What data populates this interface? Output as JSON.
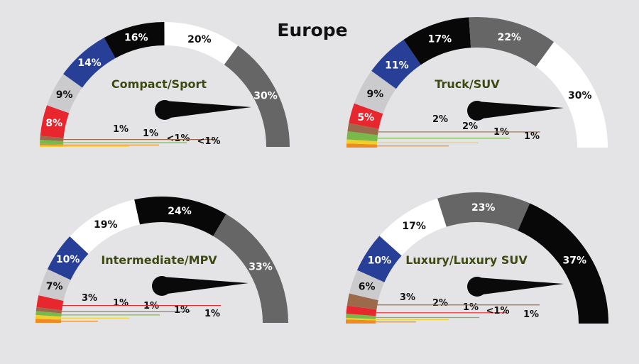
{
  "title": "Europe",
  "colors": {
    "red": "#e8262d",
    "light_gray": "#cbcbcd",
    "blue": "#283f98",
    "black": "#080808",
    "white": "#ffffff",
    "dark_gray": "#666667",
    "brown": "#9c6a4a",
    "green": "#79b94a",
    "yellow": "#f1cf2b",
    "orange": "#f08a22",
    "label_green": "#3c4a12",
    "background": "#e4e4e6"
  },
  "chart_data": [
    {
      "type": "gauge",
      "title": "Compact/Sport",
      "segments": [
        {
          "color": "yellow",
          "value": 0.4,
          "label": "<1%"
        },
        {
          "color": "orange",
          "value": 0.4,
          "label": "<1%"
        },
        {
          "color": "green",
          "value": 1,
          "label": "1%"
        },
        {
          "color": "brown",
          "value": 1,
          "label": "1%"
        },
        {
          "color": "red",
          "value": 8,
          "label": "8%"
        },
        {
          "color": "light_gray",
          "value": 9,
          "label": "9%"
        },
        {
          "color": "blue",
          "value": 14,
          "label": "14%"
        },
        {
          "color": "black",
          "value": 16,
          "label": "16%"
        },
        {
          "color": "white",
          "value": 20,
          "label": "20%"
        },
        {
          "color": "dark_gray",
          "value": 30,
          "label": "30%"
        }
      ],
      "small_labels": [
        "1%",
        "1%",
        "<1%",
        "<1%"
      ]
    },
    {
      "type": "gauge",
      "title": "Truck/SUV",
      "segments": [
        {
          "color": "orange",
          "value": 1,
          "label": "1%"
        },
        {
          "color": "yellow",
          "value": 1,
          "label": "1%"
        },
        {
          "color": "green",
          "value": 2,
          "label": "2%"
        },
        {
          "color": "brown",
          "value": 2,
          "label": "2%"
        },
        {
          "color": "red",
          "value": 5,
          "label": "5%"
        },
        {
          "color": "light_gray",
          "value": 9,
          "label": "9%"
        },
        {
          "color": "blue",
          "value": 11,
          "label": "11%"
        },
        {
          "color": "black",
          "value": 17,
          "label": "17%"
        },
        {
          "color": "dark_gray",
          "value": 22,
          "label": "22%"
        },
        {
          "color": "white",
          "value": 30,
          "label": "30%"
        }
      ],
      "small_labels": [
        "2%",
        "2%",
        "1%",
        "1%"
      ]
    },
    {
      "type": "gauge",
      "title": "Intermediate/MPV",
      "segments": [
        {
          "color": "orange",
          "value": 1,
          "label": "1%"
        },
        {
          "color": "yellow",
          "value": 1,
          "label": "1%"
        },
        {
          "color": "green",
          "value": 1,
          "label": "1%"
        },
        {
          "color": "brown",
          "value": 1,
          "label": "1%"
        },
        {
          "color": "red",
          "value": 3,
          "label": "3%"
        },
        {
          "color": "light_gray",
          "value": 7,
          "label": "7%"
        },
        {
          "color": "blue",
          "value": 10,
          "label": "10%"
        },
        {
          "color": "white",
          "value": 19,
          "label": "19%"
        },
        {
          "color": "black",
          "value": 24,
          "label": "24%"
        },
        {
          "color": "dark_gray",
          "value": 33,
          "label": "33%"
        }
      ],
      "small_labels": [
        "3%",
        "1%",
        "1%",
        "1%",
        "1%"
      ]
    },
    {
      "type": "gauge",
      "title": "Luxury/Luxury SUV",
      "segments": [
        {
          "color": "orange",
          "value": 1,
          "label": "1%"
        },
        {
          "color": "yellow",
          "value": 0.4,
          "label": "<1%"
        },
        {
          "color": "green",
          "value": 1,
          "label": "1%"
        },
        {
          "color": "red",
          "value": 2,
          "label": "2%"
        },
        {
          "color": "brown",
          "value": 3,
          "label": "3%"
        },
        {
          "color": "light_gray",
          "value": 6,
          "label": "6%"
        },
        {
          "color": "blue",
          "value": 10,
          "label": "10%"
        },
        {
          "color": "white",
          "value": 17,
          "label": "17%"
        },
        {
          "color": "dark_gray",
          "value": 23,
          "label": "23%"
        },
        {
          "color": "black",
          "value": 37,
          "label": "37%"
        }
      ],
      "small_labels": [
        "3%",
        "2%",
        "1%",
        "<1%",
        "1%"
      ]
    }
  ]
}
